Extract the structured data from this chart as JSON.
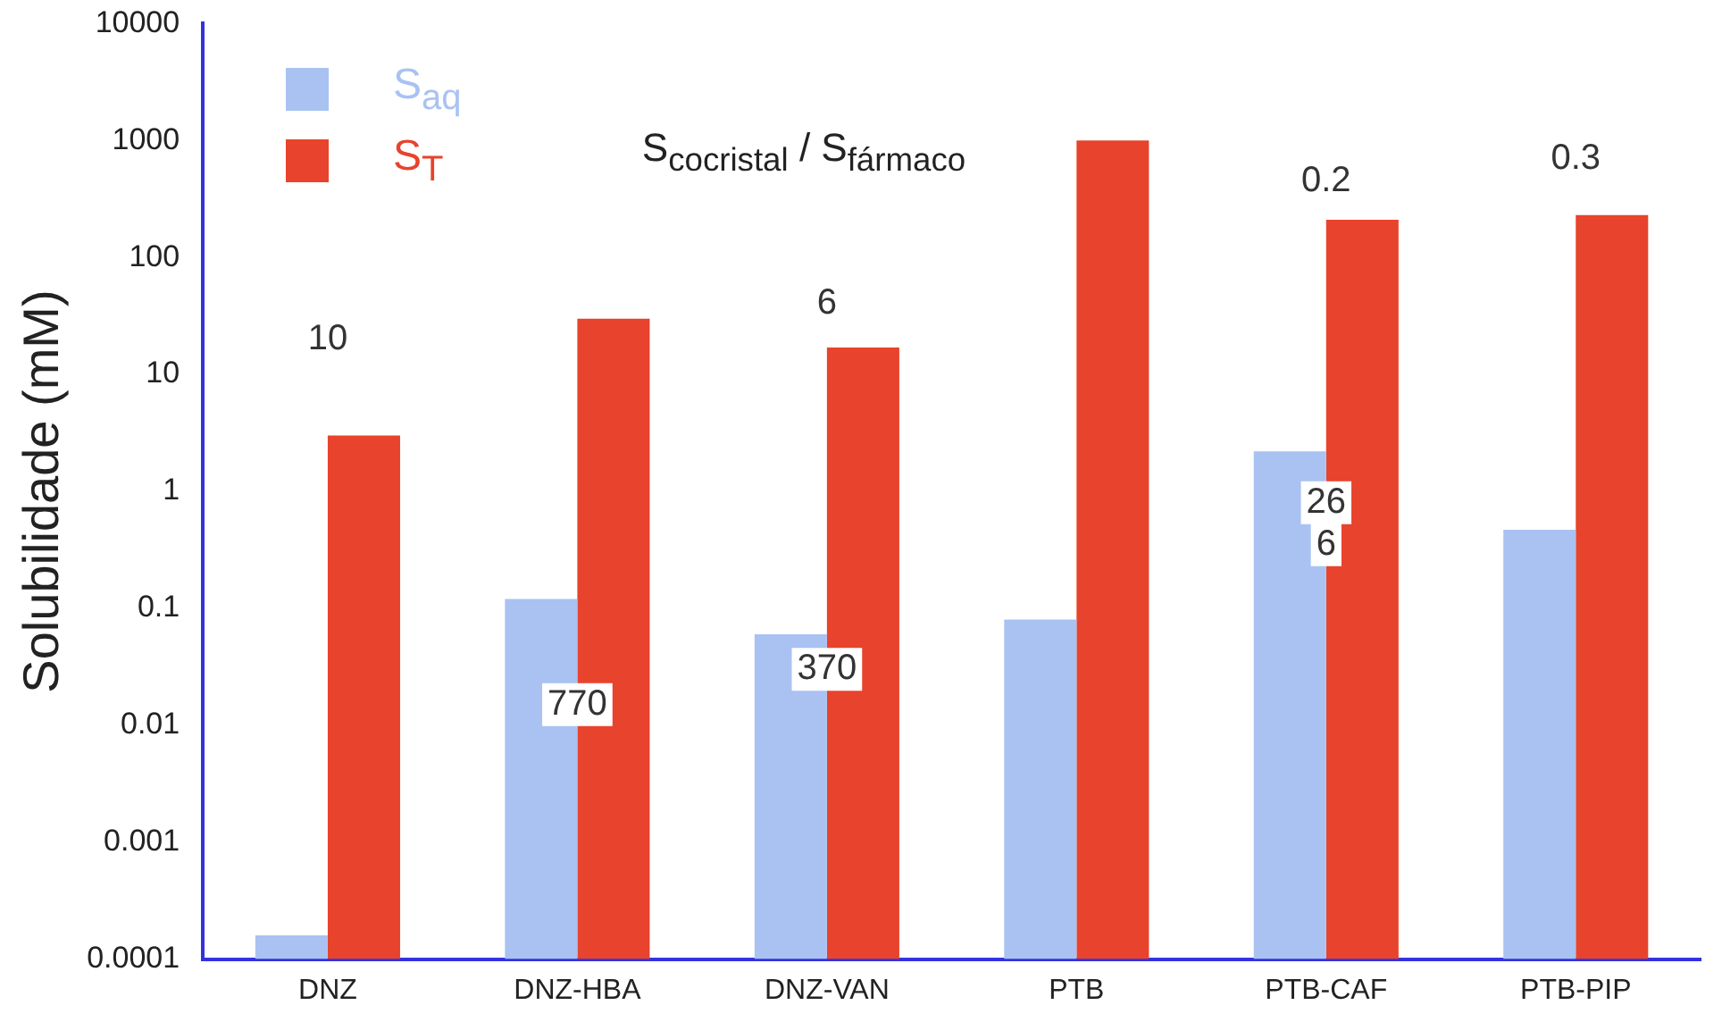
{
  "chart_data": {
    "type": "bar",
    "ylabel": "Solubilidade (mM)",
    "categories": [
      "DNZ",
      "DNZ-HBA",
      "DNZ-VAN",
      "PTB",
      "PTB-CAF",
      "PTB-PIP"
    ],
    "series": [
      {
        "name": "S$_{aq}$",
        "color": "#a9c2f2",
        "values": [
          0.00016,
          0.12,
          0.06,
          0.08,
          2.2,
          0.47
        ]
      },
      {
        "name": "S$_{T}$",
        "color": "#e8432c",
        "values": [
          3,
          30,
          17,
          1000,
          210,
          230
        ]
      }
    ],
    "log": "y",
    "ylim": [
      0.0001,
      10000
    ],
    "yticks": [
      0.0001,
      0.001,
      0.01,
      0.1,
      1,
      10,
      100,
      1000,
      10000
    ],
    "grid": false,
    "legend": "top left",
    "annotations": [
      "S$_{cocristal}$ / S$_{fármaco}$",
      {
        "text": "10",
        "x": "DNZ",
        "y": 20
      },
      {
        "text": "6",
        "x": "DNZ-VAN",
        "y": 40
      },
      {
        "text": "770",
        "x": "DNZ-HBA",
        "y": 0.015
      },
      {
        "text": "370",
        "x": "DNZ-VAN",
        "y": 0.03
      },
      {
        "text": "26",
        "x": "PTB-CAF",
        "y": 0.8
      },
      {
        "text": "6",
        "x": "PTB-CAF",
        "y": 0.35
      },
      {
        "text": "0.2",
        "x": "PTB-CAF",
        "y": 450
      },
      {
        "text": "0.3",
        "x": "PTB-PIP",
        "y": 700
      }
    ]
  }
}
